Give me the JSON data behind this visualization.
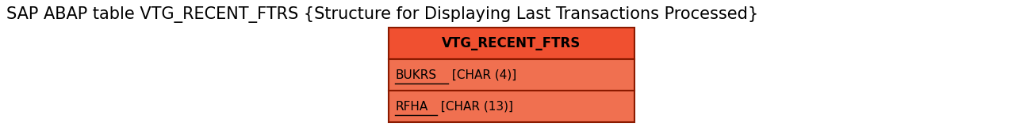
{
  "title": "SAP ABAP table VTG_RECENT_FTRS {Structure for Displaying Last Transactions Processed}",
  "title_fontsize": 15,
  "title_color": "#000000",
  "entity_name": "VTG_RECENT_FTRS",
  "fields": [
    {
      "name": "BUKRS",
      "type": " [CHAR (4)]"
    },
    {
      "name": "RFHA",
      "type": " [CHAR (13)]"
    }
  ],
  "header_color": "#f05030",
  "field_color": "#f07050",
  "border_color": "#8b1a00",
  "header_text_color": "#000000",
  "field_text_color": "#000000",
  "header_fontsize": 12,
  "field_fontsize": 11,
  "background_color": "#ffffff",
  "fig_width": 13.05,
  "fig_height": 1.65,
  "dpi": 100
}
